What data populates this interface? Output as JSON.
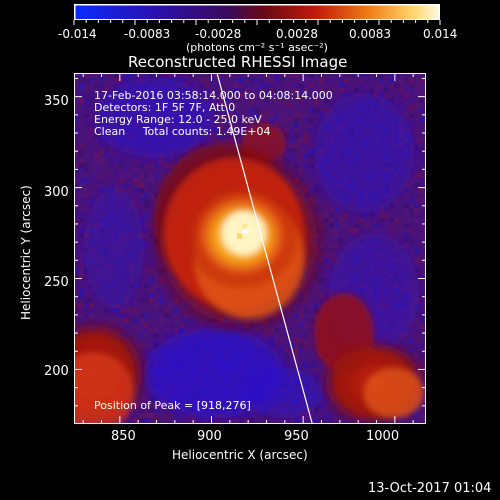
{
  "colorbar": {
    "ticks": [
      "-0.014",
      "-0.0083",
      "-0.0028",
      "0.0028",
      "0.0083",
      "0.014"
    ],
    "unit_label": "(photons cm⁻² s⁻¹ asec⁻²)",
    "colors": [
      "#0a2cff",
      "#2a10b0",
      "#3a0a5a",
      "#6a0a12",
      "#c21b0d",
      "#f07a14",
      "#ffd36a",
      "#fffde6"
    ]
  },
  "plot": {
    "title": "Reconstructed RHESSI Image",
    "xlabel": "Heliocentric X (arcsec)",
    "ylabel": "Heliocentric Y (arcsec)",
    "x_ticks": [
      "850",
      "900",
      "950",
      "1000"
    ],
    "y_ticks": [
      "200",
      "250",
      "300",
      "350"
    ],
    "info_lines": [
      "17-Feb-2016 03:58:14.000 to 04:08:14.000",
      "Detectors: 1F 5F 7F, Att 0",
      "Energy Range: 12.0 - 25.0 keV",
      "Clean     Total counts: 1.49E+04"
    ],
    "peak_label": "Position of Peak = [918,276]"
  },
  "footer": {
    "date": "13-Oct-2017 01:04"
  },
  "chart_data": {
    "type": "heatmap",
    "xlim": [
      825,
      1017
    ],
    "ylim": [
      170,
      363
    ],
    "zlim": [
      -0.014,
      0.014
    ],
    "peak": [
      918,
      276
    ],
    "limb_line": [
      [
        903,
        363
      ],
      [
        955,
        170
      ]
    ]
  }
}
